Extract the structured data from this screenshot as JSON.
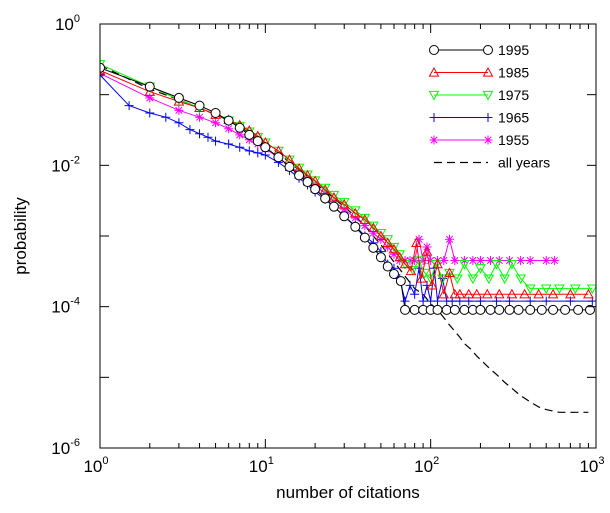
{
  "chart_data": {
    "type": "scatter",
    "title": "",
    "xlabel": "number of citations",
    "ylabel": "probability",
    "xscale": "log",
    "yscale": "log",
    "xlim": [
      1,
      1000
    ],
    "ylim": [
      1e-06,
      1
    ],
    "x_ticks": [
      {
        "base": "10",
        "exp": "0",
        "value": 1
      },
      {
        "base": "10",
        "exp": "1",
        "value": 10
      },
      {
        "base": "10",
        "exp": "2",
        "value": 100
      },
      {
        "base": "10",
        "exp": "3",
        "value": 1000
      }
    ],
    "y_ticks": [
      {
        "base": "10",
        "exp": "0",
        "value": 1
      },
      {
        "base": "10",
        "exp": "-2",
        "value": 0.01
      },
      {
        "base": "10",
        "exp": "-4",
        "value": 0.0001
      },
      {
        "base": "10",
        "exp": "-6",
        "value": 1e-06
      }
    ],
    "grid": false,
    "legend_position": "top-right",
    "series": [
      {
        "name": "1995",
        "color": "#000000",
        "marker": "circle",
        "line": "solid",
        "points": [
          [
            1,
            0.24
          ],
          [
            2,
            0.13
          ],
          [
            3,
            0.09
          ],
          [
            4,
            0.07
          ],
          [
            5,
            0.055
          ],
          [
            6,
            0.043
          ],
          [
            7,
            0.034
          ],
          [
            8,
            0.027
          ],
          [
            9,
            0.022
          ],
          [
            10,
            0.018
          ],
          [
            12,
            0.013
          ],
          [
            14,
            0.0095
          ],
          [
            16,
            0.0072
          ],
          [
            18,
            0.0058
          ],
          [
            20,
            0.0046
          ],
          [
            23,
            0.0034
          ],
          [
            26,
            0.0026
          ],
          [
            30,
            0.0019
          ],
          [
            35,
            0.00135
          ],
          [
            40,
            0.00095
          ],
          [
            45,
            0.00068
          ],
          [
            50,
            0.0005
          ],
          [
            55,
            0.00037
          ],
          [
            60,
            0.00029
          ],
          [
            66,
            0.00023
          ],
          [
            70,
            9e-05
          ],
          [
            80,
            9e-05
          ],
          [
            90,
            9e-05
          ],
          [
            100,
            9e-05
          ],
          [
            110,
            9e-05
          ],
          [
            125,
            9e-05
          ],
          [
            140,
            9e-05
          ],
          [
            160,
            9e-05
          ],
          [
            180,
            9e-05
          ],
          [
            200,
            9e-05
          ],
          [
            230,
            9e-05
          ],
          [
            260,
            9e-05
          ],
          [
            300,
            9e-05
          ],
          [
            340,
            9e-05
          ],
          [
            400,
            9e-05
          ],
          [
            470,
            9e-05
          ],
          [
            550,
            9e-05
          ],
          [
            650,
            9e-05
          ],
          [
            780,
            9e-05
          ],
          [
            920,
            9e-05
          ]
        ]
      },
      {
        "name": "1985",
        "color": "#ff0000",
        "marker": "triangle-up",
        "line": "solid",
        "points": [
          [
            1,
            0.22
          ],
          [
            2,
            0.11
          ],
          [
            3,
            0.08
          ],
          [
            4,
            0.065
          ],
          [
            5,
            0.052
          ],
          [
            6,
            0.044
          ],
          [
            7,
            0.037
          ],
          [
            8,
            0.031
          ],
          [
            9,
            0.026
          ],
          [
            10,
            0.021
          ],
          [
            12,
            0.016
          ],
          [
            14,
            0.012
          ],
          [
            16,
            0.009
          ],
          [
            18,
            0.0072
          ],
          [
            20,
            0.006
          ],
          [
            23,
            0.0045
          ],
          [
            26,
            0.0035
          ],
          [
            30,
            0.0028
          ],
          [
            35,
            0.0021
          ],
          [
            40,
            0.0017
          ],
          [
            45,
            0.0013
          ],
          [
            50,
            0.001
          ],
          [
            55,
            0.0008
          ],
          [
            60,
            0.00065
          ],
          [
            65,
            0.0005
          ],
          [
            70,
            0.0004
          ],
          [
            76,
            0.00032
          ],
          [
            82,
            0.0008
          ],
          [
            88,
            0.00025
          ],
          [
            95,
            0.0006
          ],
          [
            102,
            0.0002
          ],
          [
            110,
            0.0004
          ],
          [
            120,
            0.00015
          ],
          [
            130,
            0.0003
          ],
          [
            140,
            0.00015
          ],
          [
            150,
            0.00015
          ],
          [
            170,
            0.00015
          ],
          [
            190,
            0.00015
          ],
          [
            220,
            0.00015
          ],
          [
            260,
            0.00015
          ],
          [
            310,
            0.00015
          ],
          [
            370,
            0.00015
          ],
          [
            450,
            0.00015
          ],
          [
            550,
            0.00015
          ],
          [
            700,
            0.00015
          ],
          [
            900,
            0.00015
          ]
        ]
      },
      {
        "name": "1975",
        "color": "#00ff00",
        "marker": "triangle-down",
        "line": "solid",
        "points": [
          [
            1,
            0.27
          ],
          [
            2,
            0.13
          ],
          [
            3,
            0.085
          ],
          [
            4,
            0.065
          ],
          [
            5,
            0.052
          ],
          [
            6,
            0.043
          ],
          [
            7,
            0.036
          ],
          [
            8,
            0.03
          ],
          [
            9,
            0.025
          ],
          [
            10,
            0.021
          ],
          [
            12,
            0.016
          ],
          [
            14,
            0.012
          ],
          [
            16,
            0.0092
          ],
          [
            18,
            0.0074
          ],
          [
            20,
            0.0061
          ],
          [
            23,
            0.0048
          ],
          [
            26,
            0.0038
          ],
          [
            30,
            0.003
          ],
          [
            35,
            0.0023
          ],
          [
            40,
            0.0018
          ],
          [
            45,
            0.0014
          ],
          [
            50,
            0.0011
          ],
          [
            55,
            0.0009
          ],
          [
            60,
            0.0007
          ],
          [
            65,
            0.00055
          ],
          [
            70,
            0.0004
          ],
          [
            78,
            0.00033
          ],
          [
            85,
            0.00045
          ],
          [
            92,
            0.0003
          ],
          [
            100,
            0.00025
          ],
          [
            108,
            0.0004
          ],
          [
            118,
            0.00025
          ],
          [
            130,
            0.0003
          ],
          [
            145,
            0.00025
          ],
          [
            160,
            0.0004
          ],
          [
            180,
            0.00025
          ],
          [
            200,
            0.00035
          ],
          [
            225,
            0.00025
          ],
          [
            250,
            0.0004
          ],
          [
            280,
            0.00025
          ],
          [
            310,
            0.0004
          ],
          [
            350,
            0.00025
          ],
          [
            400,
            0.00018
          ],
          [
            500,
            0.00018
          ],
          [
            600,
            0.00018
          ],
          [
            750,
            0.00018
          ],
          [
            950,
            0.00018
          ]
        ]
      },
      {
        "name": "1965",
        "color": "#0000ff",
        "marker": "plus",
        "line": "solid",
        "points": [
          [
            1,
            0.19
          ],
          [
            1.5,
            0.07
          ],
          [
            2,
            0.055
          ],
          [
            2.5,
            0.048
          ],
          [
            3,
            0.04
          ],
          [
            3.5,
            0.032
          ],
          [
            4,
            0.028
          ],
          [
            4.5,
            0.025
          ],
          [
            5,
            0.022
          ],
          [
            6,
            0.02
          ],
          [
            7,
            0.018
          ],
          [
            8,
            0.016
          ],
          [
            9,
            0.015
          ],
          [
            10,
            0.014
          ],
          [
            12,
            0.011
          ],
          [
            14,
            0.0085
          ],
          [
            16,
            0.0066
          ],
          [
            18,
            0.0053
          ],
          [
            20,
            0.0042
          ],
          [
            23,
            0.0033
          ],
          [
            26,
            0.0026
          ],
          [
            30,
            0.0019
          ],
          [
            35,
            0.0014
          ],
          [
            40,
            0.001
          ],
          [
            45,
            0.0008
          ],
          [
            50,
            0.0006
          ],
          [
            55,
            0.0004
          ],
          [
            60,
            0.00035
          ],
          [
            65,
            0.00025
          ],
          [
            70,
            0.00012
          ],
          [
            75,
            0.0002
          ],
          [
            80,
            0.00015
          ],
          [
            85,
            0.00035
          ],
          [
            90,
            0.00012
          ],
          [
            95,
            0.0002
          ],
          [
            100,
            0.00012
          ],
          [
            105,
            0.00035
          ],
          [
            110,
            0.00012
          ],
          [
            118,
            0.00025
          ],
          [
            125,
            0.00012
          ],
          [
            135,
            0.00012
          ],
          [
            150,
            0.00012
          ],
          [
            170,
            0.00012
          ],
          [
            200,
            0.00012
          ],
          [
            250,
            0.00012
          ],
          [
            300,
            0.00012
          ],
          [
            400,
            0.00012
          ],
          [
            500,
            0.00012
          ],
          [
            700,
            0.00012
          ],
          [
            950,
            0.00012
          ]
        ]
      },
      {
        "name": "1955",
        "color": "#ff00ff",
        "marker": "asterisk",
        "line": "solid",
        "points": [
          [
            1,
            0.2
          ],
          [
            2,
            0.09
          ],
          [
            3,
            0.06
          ],
          [
            4,
            0.048
          ],
          [
            5,
            0.04
          ],
          [
            6,
            0.033
          ],
          [
            7,
            0.027
          ],
          [
            8,
            0.023
          ],
          [
            9,
            0.02
          ],
          [
            10,
            0.017
          ],
          [
            12,
            0.013
          ],
          [
            14,
            0.0097
          ],
          [
            16,
            0.0078
          ],
          [
            18,
            0.0063
          ],
          [
            20,
            0.0052
          ],
          [
            23,
            0.004
          ],
          [
            26,
            0.0031
          ],
          [
            30,
            0.0024
          ],
          [
            35,
            0.0018
          ],
          [
            40,
            0.0014
          ],
          [
            45,
            0.0011
          ],
          [
            50,
            0.0009
          ],
          [
            55,
            0.0007
          ],
          [
            60,
            0.00055
          ],
          [
            65,
            0.00045
          ],
          [
            70,
            0.00045
          ],
          [
            75,
            0.00045
          ],
          [
            80,
            0.00045
          ],
          [
            85,
            0.0009
          ],
          [
            90,
            0.00045
          ],
          [
            95,
            0.0007
          ],
          [
            100,
            0.00045
          ],
          [
            110,
            0.00045
          ],
          [
            120,
            0.00045
          ],
          [
            130,
            0.0009
          ],
          [
            140,
            0.00045
          ],
          [
            160,
            0.00045
          ],
          [
            180,
            0.00045
          ],
          [
            200,
            0.00045
          ],
          [
            230,
            0.00045
          ],
          [
            260,
            0.00045
          ],
          [
            300,
            0.00045
          ],
          [
            350,
            0.00045
          ],
          [
            400,
            0.00045
          ],
          [
            500,
            0.00045
          ],
          [
            560,
            0.00045
          ]
        ]
      },
      {
        "name": "all years",
        "color": "#000000",
        "marker": "none",
        "line": "dashed",
        "points": [
          [
            1,
            0.26
          ],
          [
            2,
            0.12
          ],
          [
            3,
            0.085
          ],
          [
            4,
            0.065
          ],
          [
            5,
            0.052
          ],
          [
            6,
            0.043
          ],
          [
            7,
            0.035
          ],
          [
            8,
            0.029
          ],
          [
            9,
            0.024
          ],
          [
            10,
            0.02
          ],
          [
            12,
            0.015
          ],
          [
            14,
            0.011
          ],
          [
            16,
            0.0086
          ],
          [
            18,
            0.0069
          ],
          [
            20,
            0.0056
          ],
          [
            23,
            0.0043
          ],
          [
            26,
            0.0034
          ],
          [
            30,
            0.0026
          ],
          [
            35,
            0.0019
          ],
          [
            40,
            0.0014
          ],
          [
            45,
            0.001
          ],
          [
            50,
            0.00075
          ],
          [
            55,
            0.00056
          ],
          [
            60,
            0.00043
          ],
          [
            65,
            0.00034
          ],
          [
            70,
            0.00027
          ],
          [
            75,
            0.00022
          ],
          [
            80,
            0.00018
          ],
          [
            90,
            0.00015
          ],
          [
            100,
            0.00011
          ],
          [
            110,
            9e-05
          ],
          [
            120,
            7e-05
          ],
          [
            130,
            5.5e-05
          ],
          [
            140,
            4.5e-05
          ],
          [
            150,
            3.7e-05
          ],
          [
            160,
            3e-05
          ],
          [
            175,
            2.5e-05
          ],
          [
            190,
            2e-05
          ],
          [
            210,
            1.6e-05
          ],
          [
            230,
            1.3e-05
          ],
          [
            250,
            1.1e-05
          ],
          [
            280,
            8.5e-06
          ],
          [
            310,
            7e-06
          ],
          [
            350,
            5.5e-06
          ],
          [
            400,
            4.5e-06
          ],
          [
            450,
            3.8e-06
          ],
          [
            500,
            3.5e-06
          ],
          [
            600,
            3.2e-06
          ],
          [
            700,
            3.2e-06
          ],
          [
            800,
            3.2e-06
          ],
          [
            900,
            3.2e-06
          ]
        ]
      }
    ]
  }
}
